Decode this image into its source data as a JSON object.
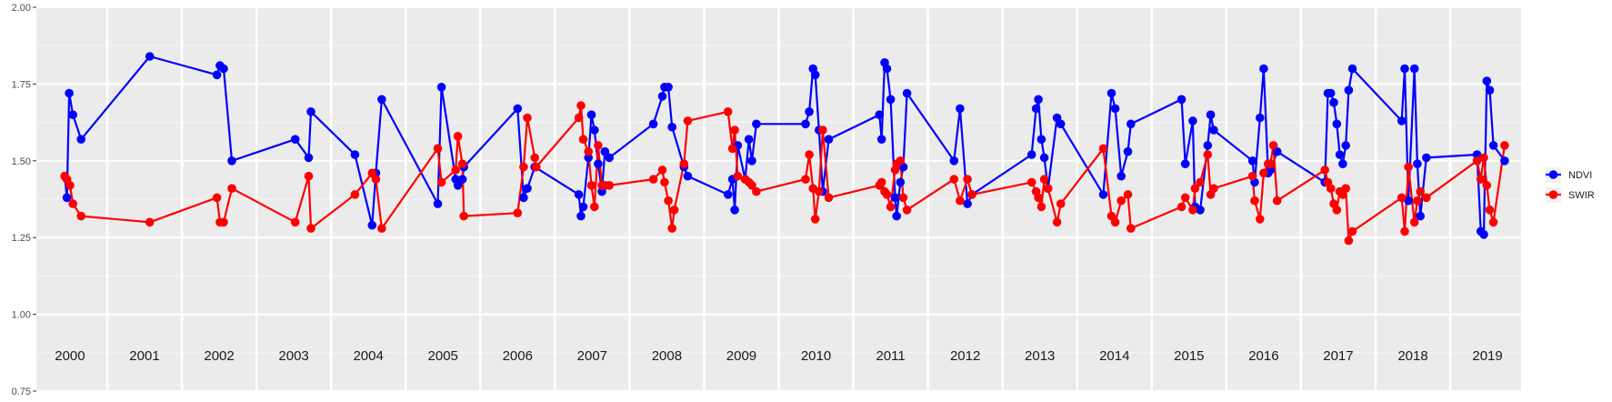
{
  "chart_data": {
    "type": "line",
    "title": "",
    "xlabel": "",
    "ylabel": "",
    "xlim": [
      1999.55,
      2019.45
    ],
    "ylim": [
      0.75,
      2.0
    ],
    "yticks": [
      "0.75",
      "1.00",
      "1.25",
      "1.50",
      "1.75",
      "2.00"
    ],
    "year_labels": [
      "2000",
      "2001",
      "2002",
      "2003",
      "2004",
      "2005",
      "2006",
      "2007",
      "2008",
      "2009",
      "2010",
      "2011",
      "2012",
      "2013",
      "2014",
      "2015",
      "2016",
      "2017",
      "2018",
      "2019"
    ],
    "grid": true,
    "legend_position": "right",
    "series": [
      {
        "name": "NDVI",
        "color": "#0000FF",
        "points": [
          [
            1999.93,
            1.45
          ],
          [
            1999.96,
            1.38
          ],
          [
            1999.99,
            1.72
          ],
          [
            2000.04,
            1.65
          ],
          [
            2000.15,
            1.57
          ],
          [
            2001.07,
            1.84
          ],
          [
            2001.97,
            1.78
          ],
          [
            2002.01,
            1.81
          ],
          [
            2002.06,
            1.8
          ],
          [
            2002.17,
            1.5
          ],
          [
            2003.02,
            1.57
          ],
          [
            2003.2,
            1.51
          ],
          [
            2003.23,
            1.66
          ],
          [
            2003.82,
            1.52
          ],
          [
            2004.05,
            1.29
          ],
          [
            2004.1,
            1.46
          ],
          [
            2004.18,
            1.7
          ],
          [
            2004.93,
            1.36
          ],
          [
            2004.98,
            1.74
          ],
          [
            2005.17,
            1.44
          ],
          [
            2005.2,
            1.42
          ],
          [
            2005.26,
            1.44
          ],
          [
            2005.28,
            1.48
          ],
          [
            2006.0,
            1.67
          ],
          [
            2006.08,
            1.38
          ],
          [
            2006.13,
            1.41
          ],
          [
            2006.23,
            1.48
          ],
          [
            2006.82,
            1.39
          ],
          [
            2006.85,
            1.32
          ],
          [
            2006.88,
            1.35
          ],
          [
            2006.95,
            1.51
          ],
          [
            2006.99,
            1.65
          ],
          [
            2007.03,
            1.6
          ],
          [
            2007.08,
            1.49
          ],
          [
            2007.13,
            1.4
          ],
          [
            2007.17,
            1.53
          ],
          [
            2007.23,
            1.51
          ],
          [
            2007.82,
            1.62
          ],
          [
            2007.94,
            1.71
          ],
          [
            2007.97,
            1.74
          ],
          [
            2008.02,
            1.74
          ],
          [
            2008.07,
            1.61
          ],
          [
            2008.23,
            1.48
          ],
          [
            2008.28,
            1.45
          ],
          [
            2008.82,
            1.39
          ],
          [
            2008.88,
            1.44
          ],
          [
            2008.91,
            1.34
          ],
          [
            2008.95,
            1.55
          ],
          [
            2009.05,
            1.44
          ],
          [
            2009.1,
            1.57
          ],
          [
            2009.14,
            1.5
          ],
          [
            2009.2,
            1.62
          ],
          [
            2009.86,
            1.62
          ],
          [
            2009.91,
            1.66
          ],
          [
            2009.96,
            1.8
          ],
          [
            2009.99,
            1.78
          ],
          [
            2010.04,
            1.6
          ],
          [
            2010.09,
            1.4
          ],
          [
            2010.17,
            1.57
          ],
          [
            2010.85,
            1.65
          ],
          [
            2010.88,
            1.57
          ],
          [
            2010.92,
            1.82
          ],
          [
            2010.95,
            1.8
          ],
          [
            2011.0,
            1.7
          ],
          [
            2011.06,
            1.38
          ],
          [
            2011.08,
            1.32
          ],
          [
            2011.13,
            1.43
          ],
          [
            2011.17,
            1.48
          ],
          [
            2011.22,
            1.72
          ],
          [
            2011.85,
            1.5
          ],
          [
            2011.93,
            1.67
          ],
          [
            2012.03,
            1.36
          ],
          [
            2012.09,
            1.39
          ],
          [
            2012.89,
            1.52
          ],
          [
            2012.95,
            1.67
          ],
          [
            2012.98,
            1.7
          ],
          [
            2013.02,
            1.57
          ],
          [
            2013.06,
            1.51
          ],
          [
            2013.11,
            1.41
          ],
          [
            2013.23,
            1.64
          ],
          [
            2013.28,
            1.62
          ],
          [
            2013.85,
            1.39
          ],
          [
            2013.96,
            1.72
          ],
          [
            2014.01,
            1.67
          ],
          [
            2014.09,
            1.45
          ],
          [
            2014.18,
            1.53
          ],
          [
            2014.22,
            1.62
          ],
          [
            2014.9,
            1.7
          ],
          [
            2014.95,
            1.49
          ],
          [
            2015.05,
            1.63
          ],
          [
            2015.08,
            1.35
          ],
          [
            2015.15,
            1.34
          ],
          [
            2015.25,
            1.55
          ],
          [
            2015.29,
            1.65
          ],
          [
            2015.33,
            1.6
          ],
          [
            2015.85,
            1.5
          ],
          [
            2015.88,
            1.43
          ],
          [
            2015.95,
            1.64
          ],
          [
            2016.0,
            1.8
          ],
          [
            2016.06,
            1.46
          ],
          [
            2016.09,
            1.47
          ],
          [
            2016.18,
            1.53
          ],
          [
            2016.82,
            1.43
          ],
          [
            2016.86,
            1.72
          ],
          [
            2016.9,
            1.72
          ],
          [
            2016.94,
            1.69
          ],
          [
            2016.98,
            1.62
          ],
          [
            2017.02,
            1.52
          ],
          [
            2017.06,
            1.49
          ],
          [
            2017.1,
            1.55
          ],
          [
            2017.14,
            1.73
          ],
          [
            2017.19,
            1.8
          ],
          [
            2017.85,
            1.63
          ],
          [
            2017.89,
            1.8
          ],
          [
            2017.94,
            1.37
          ],
          [
            2018.02,
            1.8
          ],
          [
            2018.06,
            1.49
          ],
          [
            2018.1,
            1.32
          ],
          [
            2018.18,
            1.51
          ],
          [
            2018.86,
            1.52
          ],
          [
            2018.91,
            1.27
          ],
          [
            2018.95,
            1.26
          ],
          [
            2018.99,
            1.76
          ],
          [
            2019.03,
            1.73
          ],
          [
            2019.08,
            1.55
          ],
          [
            2019.23,
            1.5
          ]
        ]
      },
      {
        "name": "SWIR",
        "color": "#FF0000",
        "points": [
          [
            1999.93,
            1.45
          ],
          [
            1999.96,
            1.44
          ],
          [
            2000.0,
            1.42
          ],
          [
            2000.04,
            1.36
          ],
          [
            2000.15,
            1.32
          ],
          [
            2001.07,
            1.3
          ],
          [
            2001.97,
            1.38
          ],
          [
            2002.01,
            1.3
          ],
          [
            2002.06,
            1.3
          ],
          [
            2002.17,
            1.41
          ],
          [
            2003.02,
            1.3
          ],
          [
            2003.2,
            1.45
          ],
          [
            2003.23,
            1.28
          ],
          [
            2003.82,
            1.39
          ],
          [
            2004.05,
            1.46
          ],
          [
            2004.1,
            1.44
          ],
          [
            2004.18,
            1.28
          ],
          [
            2004.93,
            1.54
          ],
          [
            2004.98,
            1.43
          ],
          [
            2005.17,
            1.47
          ],
          [
            2005.2,
            1.58
          ],
          [
            2005.26,
            1.49
          ],
          [
            2005.28,
            1.32
          ],
          [
            2006.0,
            1.33
          ],
          [
            2006.08,
            1.48
          ],
          [
            2006.13,
            1.64
          ],
          [
            2006.23,
            1.51
          ],
          [
            2006.25,
            1.48
          ],
          [
            2006.82,
            1.64
          ],
          [
            2006.85,
            1.68
          ],
          [
            2006.88,
            1.57
          ],
          [
            2006.95,
            1.53
          ],
          [
            2006.99,
            1.42
          ],
          [
            2007.03,
            1.35
          ],
          [
            2007.08,
            1.55
          ],
          [
            2007.13,
            1.42
          ],
          [
            2007.17,
            1.42
          ],
          [
            2007.23,
            1.42
          ],
          [
            2007.82,
            1.44
          ],
          [
            2007.94,
            1.47
          ],
          [
            2007.97,
            1.43
          ],
          [
            2008.02,
            1.37
          ],
          [
            2008.07,
            1.28
          ],
          [
            2008.1,
            1.34
          ],
          [
            2008.23,
            1.49
          ],
          [
            2008.28,
            1.63
          ],
          [
            2008.82,
            1.66
          ],
          [
            2008.88,
            1.54
          ],
          [
            2008.91,
            1.6
          ],
          [
            2008.95,
            1.45
          ],
          [
            2009.05,
            1.44
          ],
          [
            2009.1,
            1.43
          ],
          [
            2009.14,
            1.42
          ],
          [
            2009.2,
            1.4
          ],
          [
            2009.86,
            1.44
          ],
          [
            2009.91,
            1.52
          ],
          [
            2009.96,
            1.41
          ],
          [
            2009.99,
            1.31
          ],
          [
            2010.04,
            1.4
          ],
          [
            2010.09,
            1.6
          ],
          [
            2010.17,
            1.38
          ],
          [
            2010.85,
            1.42
          ],
          [
            2010.88,
            1.43
          ],
          [
            2010.92,
            1.4
          ],
          [
            2010.95,
            1.39
          ],
          [
            2011.0,
            1.35
          ],
          [
            2011.06,
            1.47
          ],
          [
            2011.08,
            1.49
          ],
          [
            2011.13,
            1.5
          ],
          [
            2011.17,
            1.38
          ],
          [
            2011.22,
            1.34
          ],
          [
            2011.85,
            1.44
          ],
          [
            2011.93,
            1.37
          ],
          [
            2012.03,
            1.44
          ],
          [
            2012.09,
            1.39
          ],
          [
            2012.89,
            1.43
          ],
          [
            2012.95,
            1.4
          ],
          [
            2012.98,
            1.38
          ],
          [
            2013.02,
            1.35
          ],
          [
            2013.06,
            1.44
          ],
          [
            2013.11,
            1.41
          ],
          [
            2013.23,
            1.3
          ],
          [
            2013.28,
            1.36
          ],
          [
            2013.85,
            1.54
          ],
          [
            2013.96,
            1.32
          ],
          [
            2014.01,
            1.3
          ],
          [
            2014.09,
            1.37
          ],
          [
            2014.18,
            1.39
          ],
          [
            2014.22,
            1.28
          ],
          [
            2014.9,
            1.35
          ],
          [
            2014.95,
            1.38
          ],
          [
            2015.05,
            1.34
          ],
          [
            2015.08,
            1.41
          ],
          [
            2015.15,
            1.43
          ],
          [
            2015.25,
            1.52
          ],
          [
            2015.29,
            1.39
          ],
          [
            2015.33,
            1.41
          ],
          [
            2015.85,
            1.45
          ],
          [
            2015.88,
            1.37
          ],
          [
            2015.95,
            1.31
          ],
          [
            2016.0,
            1.46
          ],
          [
            2016.06,
            1.49
          ],
          [
            2016.09,
            1.49
          ],
          [
            2016.13,
            1.55
          ],
          [
            2016.18,
            1.37
          ],
          [
            2016.82,
            1.47
          ],
          [
            2016.86,
            1.43
          ],
          [
            2016.9,
            1.41
          ],
          [
            2016.94,
            1.36
          ],
          [
            2016.98,
            1.34
          ],
          [
            2017.02,
            1.4
          ],
          [
            2017.06,
            1.39
          ],
          [
            2017.1,
            1.41
          ],
          [
            2017.14,
            1.24
          ],
          [
            2017.19,
            1.27
          ],
          [
            2017.85,
            1.38
          ],
          [
            2017.89,
            1.27
          ],
          [
            2017.94,
            1.48
          ],
          [
            2018.02,
            1.3
          ],
          [
            2018.06,
            1.37
          ],
          [
            2018.1,
            1.4
          ],
          [
            2018.18,
            1.38
          ],
          [
            2018.86,
            1.5
          ],
          [
            2018.91,
            1.44
          ],
          [
            2018.95,
            1.51
          ],
          [
            2018.99,
            1.42
          ],
          [
            2019.03,
            1.34
          ],
          [
            2019.08,
            1.3
          ],
          [
            2019.23,
            1.55
          ]
        ]
      }
    ]
  }
}
